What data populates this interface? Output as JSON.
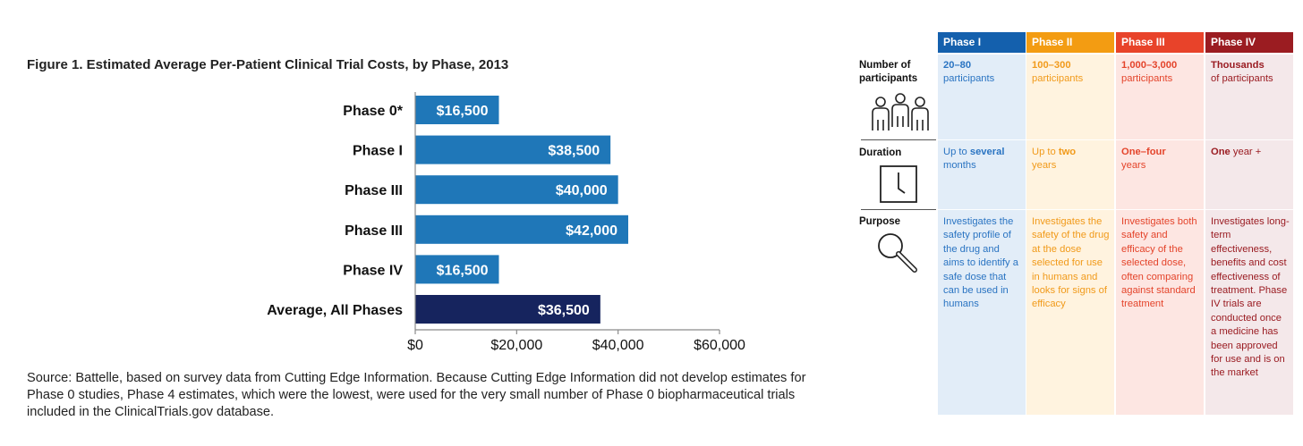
{
  "figure_title": "Figure 1. Estimated Average Per-Patient Clinical Trial Costs, by Phase, 2013",
  "source_note": "Source:  Battelle, based on survey data from Cutting Edge Information. Because Cutting Edge Information did not develop estimates for Phase 0 studies, Phase 4 estimates, which were the lowest, were used for the very small number of Phase 0 biopharmaceutical trials included in the ClinicalTrials.gov database.",
  "chart_data": {
    "type": "bar",
    "orientation": "horizontal",
    "categories": [
      "Phase 0*",
      "Phase I",
      "Phase III",
      "Phase III",
      "Phase IV",
      "Average, All Phases"
    ],
    "values": [
      16500,
      38500,
      40000,
      42000,
      16500,
      36500
    ],
    "data_labels": [
      "$16,500",
      "$38,500",
      "$40,000",
      "$42,000",
      "$16,500",
      "$36,500"
    ],
    "title": "Figure 1. Estimated Average Per-Patient Clinical Trial Costs, by Phase, 2013",
    "xlim": [
      0,
      60000
    ],
    "x_ticks": [
      0,
      20000,
      40000,
      60000
    ],
    "x_tick_labels": [
      "$0",
      "$20,000",
      "$40,000",
      "$60,000"
    ],
    "grid": false,
    "colors": {
      "phase_bar": "#1f77b8",
      "average_bar": "#16245e",
      "axis": "#8a8a8a"
    }
  },
  "phase_table": {
    "row_labels": {
      "participants": "Number of participants",
      "duration": "Duration",
      "purpose": "Purpose"
    },
    "icons": {
      "participants": "people-icon",
      "duration": "clock-icon",
      "purpose": "magnifier-icon"
    },
    "columns": [
      {
        "header": "Phase I",
        "header_color": "#1460ad",
        "bg_color": "#e2edf8",
        "text_color": "#2a74c2",
        "participants_bold": "20–80",
        "participants_rest": "participants",
        "duration_pre": "Up to ",
        "duration_bold": "several",
        "duration_post": "months",
        "purpose": "Investigates the safety profile of the drug and aims to identify a safe dose that can be used in humans"
      },
      {
        "header": "Phase II",
        "header_color": "#f39c12",
        "bg_color": "#fff3df",
        "text_color": "#f19a1a",
        "participants_bold": "100–300",
        "participants_rest": "participants",
        "duration_pre": "Up to ",
        "duration_bold": "two",
        "duration_post": "years",
        "purpose": "Investigates the safety of the drug at the dose selected for use in humans and looks for signs of efficacy"
      },
      {
        "header": "Phase III",
        "header_color": "#e8432a",
        "bg_color": "#fde6e2",
        "text_color": "#e4442b",
        "participants_bold": "1,000–3,000",
        "participants_rest": "participants",
        "duration_pre": "",
        "duration_bold": "One–four",
        "duration_post": "years",
        "purpose": "Investigates both safety and efficacy of the selected dose, often comparing against standard treatment"
      },
      {
        "header": "Phase IV",
        "header_color": "#9b1c21",
        "bg_color": "#f4e8ea",
        "text_color": "#9a1c22",
        "participants_bold": "Thousands",
        "participants_rest": "of participants",
        "duration_pre": "",
        "duration_bold": "One",
        "duration_post": " year +",
        "purpose": "Investigates long-term effectiveness, benefits and cost effectiveness of treatment. Phase IV trials are conducted once a medicine has been approved for use and is on the market"
      }
    ]
  }
}
